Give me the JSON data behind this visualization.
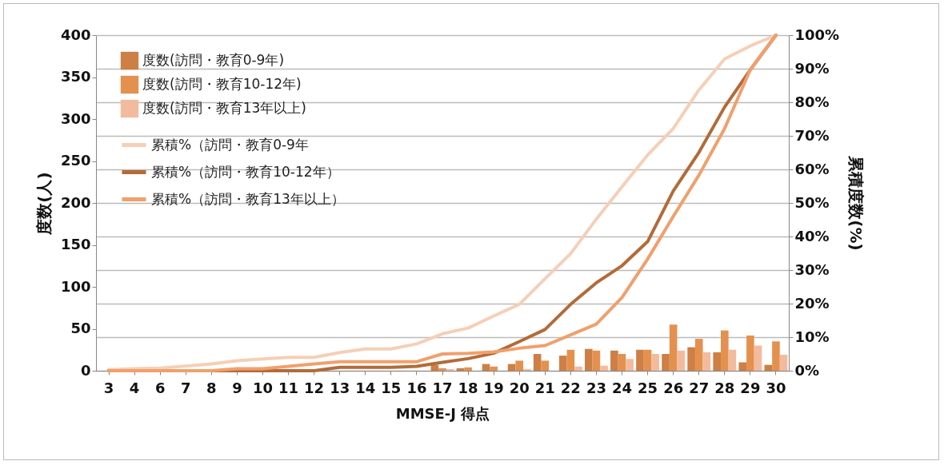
{
  "chart_data": {
    "type": "bar",
    "xlabel": "MMSE-J 得点",
    "ylabel": "度数(人)",
    "y2label": "累積度数(%)",
    "categories": [
      "3",
      "4",
      "6",
      "7",
      "8",
      "9",
      "10",
      "11",
      "12",
      "13",
      "14",
      "15",
      "16",
      "17",
      "18",
      "19",
      "20",
      "21",
      "22",
      "23",
      "24",
      "25",
      "26",
      "27",
      "28",
      "29",
      "30"
    ],
    "series": [
      {
        "name": "度数(訪問・教育0-9年)",
        "color": "#cd7f45",
        "values": [
          null,
          null,
          null,
          null,
          null,
          null,
          null,
          null,
          null,
          null,
          null,
          null,
          null,
          7,
          3,
          8,
          8,
          20,
          18,
          26,
          24,
          25,
          20,
          28,
          22,
          10,
          7
        ]
      },
      {
        "name": "度数(訪問・教育10-12年)",
        "color": "#e4914f",
        "values": [
          null,
          null,
          null,
          null,
          null,
          null,
          null,
          null,
          null,
          null,
          null,
          null,
          null,
          3,
          4,
          5,
          12,
          12,
          25,
          24,
          20,
          25,
          55,
          38,
          48,
          42,
          35
        ]
      },
      {
        "name": "度数(訪問・教育13年以上)",
        "color": "#f3bb9d",
        "values": [
          null,
          null,
          null,
          null,
          null,
          null,
          null,
          null,
          null,
          null,
          null,
          null,
          null,
          2,
          0,
          0,
          2,
          0,
          5,
          6,
          14,
          20,
          24,
          22,
          25,
          30,
          19
        ]
      },
      {
        "name": "累積%（訪問・教育0-9年",
        "type": "line",
        "axis": "y2",
        "color": "#f5cfb7",
        "values": [
          0.3,
          0.6,
          0.8,
          1.4,
          2,
          3,
          3.5,
          4,
          4,
          5.4,
          6.5,
          6.5,
          8,
          11,
          12.7,
          16.3,
          19.8,
          27.4,
          34.9,
          45.2,
          54.8,
          64.3,
          72.2,
          83.7,
          92.9,
          96.8,
          100
        ]
      },
      {
        "name": "累積%（訪問・教育10-12年）",
        "type": "line",
        "axis": "y2",
        "color": "#b36b38",
        "values": [
          0,
          0,
          0,
          0,
          0,
          0,
          0,
          0,
          0,
          1,
          1,
          1,
          1.3,
          2.5,
          3.6,
          5.2,
          8.7,
          12.3,
          19.8,
          26.2,
          31.3,
          38.5,
          53.6,
          65.1,
          78.6,
          89.7,
          100
        ]
      },
      {
        "name": "累積%（訪問・教育13年以上）",
        "type": "line",
        "axis": "y2",
        "color": "#f0a06c",
        "values": [
          0,
          0,
          0,
          0,
          0,
          0.6,
          0.6,
          1.3,
          2,
          2.7,
          2.7,
          2.7,
          2.7,
          5,
          5.2,
          5.6,
          6.7,
          7.5,
          10.7,
          13.9,
          21.8,
          33.3,
          46,
          58.3,
          72.2,
          89.7,
          100
        ]
      }
    ],
    "ylim": [
      0,
      400
    ],
    "yticks": [
      0,
      50,
      100,
      150,
      200,
      250,
      300,
      350,
      400
    ],
    "y2lim": [
      0,
      100
    ],
    "y2ticks": [
      {
        "value": 0,
        "label": "0%"
      },
      {
        "value": 10,
        "label": "10%"
      },
      {
        "value": 20,
        "label": "20%"
      },
      {
        "value": 30,
        "label": "30%"
      },
      {
        "value": 40,
        "label": "40%"
      },
      {
        "value": 50,
        "label": "50%"
      },
      {
        "value": 60,
        "label": "60%"
      },
      {
        "value": 70,
        "label": "70%"
      },
      {
        "value": 80,
        "label": "80%"
      },
      {
        "value": 90,
        "label": "90%"
      },
      {
        "value": 100,
        "label": "100%"
      }
    ],
    "grid": true,
    "legend": "top left"
  }
}
